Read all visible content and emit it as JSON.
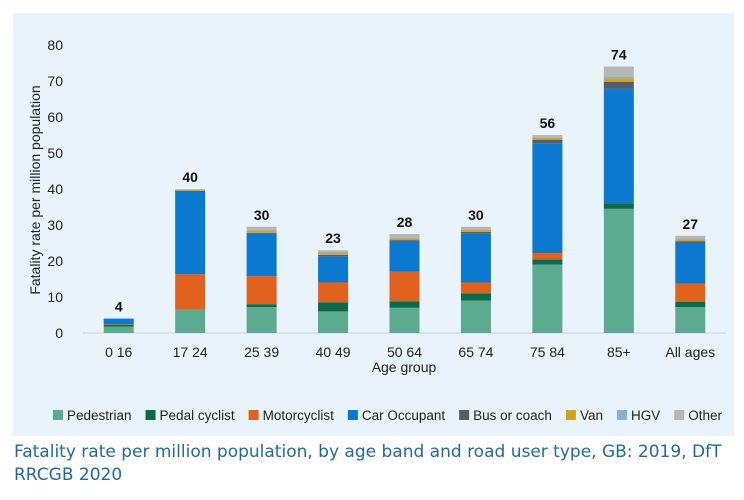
{
  "chart_data": {
    "type": "bar",
    "stacked": true,
    "ylabel": "Fatality rate per million population",
    "xlabel": "Age group",
    "ylim": [
      0,
      80
    ],
    "yticks": [
      0,
      10,
      20,
      30,
      40,
      50,
      60,
      70,
      80
    ],
    "grid": false,
    "legend_position": "bottom",
    "categories": [
      "0 16",
      "17 24",
      "25 39",
      "40 49",
      "50 64",
      "65 74",
      "75 84",
      "85+",
      "All ages"
    ],
    "totals": [
      "4",
      "40",
      "30",
      "23",
      "28",
      "30",
      "56",
      "74",
      "27"
    ],
    "series": [
      {
        "name": "Pedestrian",
        "color": "#5aab8f",
        "values": [
          1.8,
          6.5,
          7.2,
          6.0,
          7.0,
          9.0,
          19.0,
          34.5,
          7.2
        ]
      },
      {
        "name": "Pedal cyclist",
        "color": "#0a6b4b",
        "values": [
          0.5,
          0.0,
          0.8,
          2.5,
          1.8,
          2.0,
          1.4,
          1.5,
          1.5
        ]
      },
      {
        "name": "Motorcyclist",
        "color": "#e0621c",
        "values": [
          0.2,
          9.8,
          7.8,
          5.5,
          8.2,
          3.0,
          1.8,
          0.0,
          5.0
        ]
      },
      {
        "name": "Car Occupant",
        "color": "#0b79d0",
        "values": [
          1.5,
          23.0,
          11.8,
          7.2,
          8.3,
          13.6,
          30.5,
          31.8,
          11.3
        ]
      },
      {
        "name": "Bus or coach",
        "color": "#555e66",
        "values": [
          0.0,
          0.2,
          0.2,
          0.5,
          0.5,
          0.5,
          1.0,
          2.0,
          0.5
        ]
      },
      {
        "name": "Van",
        "color": "#d2a21f",
        "values": [
          0.0,
          0.3,
          0.6,
          0.5,
          0.4,
          0.5,
          0.5,
          1.0,
          0.5
        ]
      },
      {
        "name": "HGV",
        "color": "#7fb3dc",
        "values": [
          0.0,
          0.1,
          0.3,
          0.3,
          0.3,
          0.2,
          0.2,
          0.5,
          0.3
        ]
      },
      {
        "name": "Other",
        "color": "#b6b6b6",
        "values": [
          0.0,
          0.1,
          0.8,
          0.5,
          1.0,
          0.7,
          0.6,
          2.7,
          0.7
        ]
      }
    ]
  },
  "caption": "Fatality rate per million population, by age band and road user type, GB: 2019, DfT RRCGB 2020"
}
